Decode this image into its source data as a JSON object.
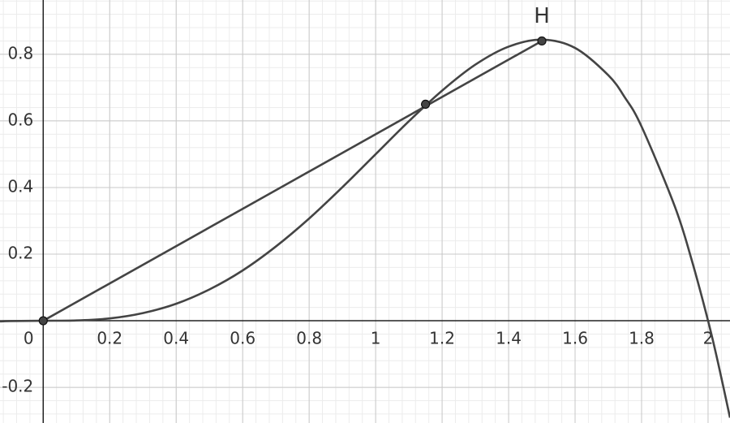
{
  "chart_data": {
    "type": "line",
    "xlim": [
      -0.13,
      2.066
    ],
    "ylim": [
      -0.307,
      0.963
    ],
    "xticks": [
      0,
      0.2,
      0.4,
      0.6,
      0.8,
      1,
      1.2,
      1.4,
      1.6,
      1.8,
      2
    ],
    "yticks": [
      -0.2,
      0.2,
      0.4,
      0.6,
      0.8
    ],
    "grid": true,
    "series": [
      {
        "type": "line",
        "color": "#444444",
        "x": [
          -0.13,
          -0.1,
          0,
          0.1,
          0.2,
          0.3,
          0.4,
          0.5,
          0.6,
          0.7,
          0.8,
          0.9,
          1.0,
          1.1,
          1.2,
          1.3,
          1.4,
          1.5,
          1.6,
          1.7,
          1.75,
          1.8,
          1.9,
          1.95,
          2.0,
          2.03,
          2.066
        ],
        "values": [
          -0.002,
          -0.001,
          0,
          0.001,
          0.007,
          0.023,
          0.051,
          0.094,
          0.151,
          0.223,
          0.307,
          0.401,
          0.5,
          0.599,
          0.691,
          0.769,
          0.823,
          0.844,
          0.819,
          0.737,
          0.67,
          0.583,
          0.343,
          0.185,
          0,
          -0.126,
          -0.291
        ]
      },
      {
        "type": "line",
        "color": "#444444",
        "x": [
          0,
          1.5
        ],
        "values": [
          0,
          0.84
        ]
      },
      {
        "type": "scatter",
        "color": "#444444",
        "x": [
          0,
          1.15,
          1.5
        ],
        "values": [
          0,
          0.65,
          0.84
        ],
        "labels": [
          null,
          null,
          "H"
        ]
      }
    ]
  }
}
